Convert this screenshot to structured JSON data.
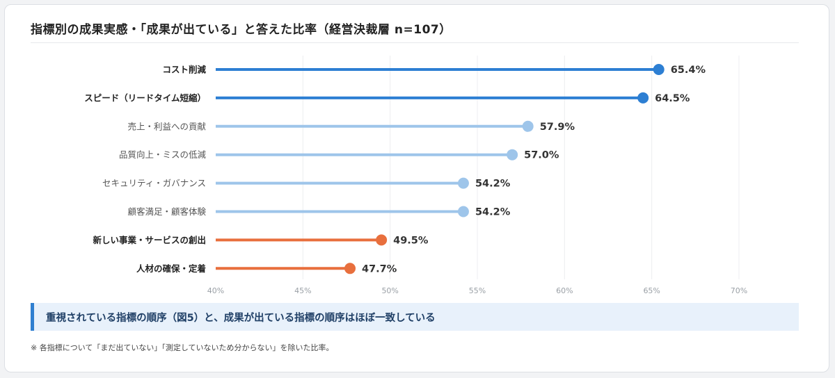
{
  "title": "指標別の成果実感・「成果が出ている」と答えた比率（経営決裁層 n=107）",
  "callout": "重視されている指標の順序（図5）と、成果が出ている指標の順序はほぼ一致している",
  "footnote": "※ 各指標について「まだ出ていない」「測定していないため分からない」を除いた比率。",
  "colors": {
    "dark_blue": "#2d7fd3",
    "light_blue": "#9ec5ea",
    "orange": "#e86f3d",
    "grid": "#ecedf0"
  },
  "chart_data": {
    "type": "lollipop",
    "xlim": [
      40,
      70
    ],
    "ticks": [
      40,
      45,
      50,
      55,
      60,
      65,
      70
    ],
    "tick_labels": [
      "40%",
      "45%",
      "50%",
      "55%",
      "60%",
      "65%",
      "70%"
    ],
    "items": [
      {
        "label": "コスト削減",
        "value": 65.4,
        "value_label": "65.4%",
        "group": "dark_blue",
        "bold": true
      },
      {
        "label": "スピード（リードタイム短縮）",
        "value": 64.5,
        "value_label": "64.5%",
        "group": "dark_blue",
        "bold": true
      },
      {
        "label": "売上・利益への貢献",
        "value": 57.9,
        "value_label": "57.9%",
        "group": "light_blue",
        "bold": false
      },
      {
        "label": "品質向上・ミスの低減",
        "value": 57.0,
        "value_label": "57.0%",
        "group": "light_blue",
        "bold": false
      },
      {
        "label": "セキュリティ・ガバナンス",
        "value": 54.2,
        "value_label": "54.2%",
        "group": "light_blue",
        "bold": false
      },
      {
        "label": "顧客満足・顧客体験",
        "value": 54.2,
        "value_label": "54.2%",
        "group": "light_blue",
        "bold": false
      },
      {
        "label": "新しい事業・サービスの創出",
        "value": 49.5,
        "value_label": "49.5%",
        "group": "orange",
        "bold": true
      },
      {
        "label": "人材の確保・定着",
        "value": 47.7,
        "value_label": "47.7%",
        "group": "orange",
        "bold": true
      }
    ]
  }
}
